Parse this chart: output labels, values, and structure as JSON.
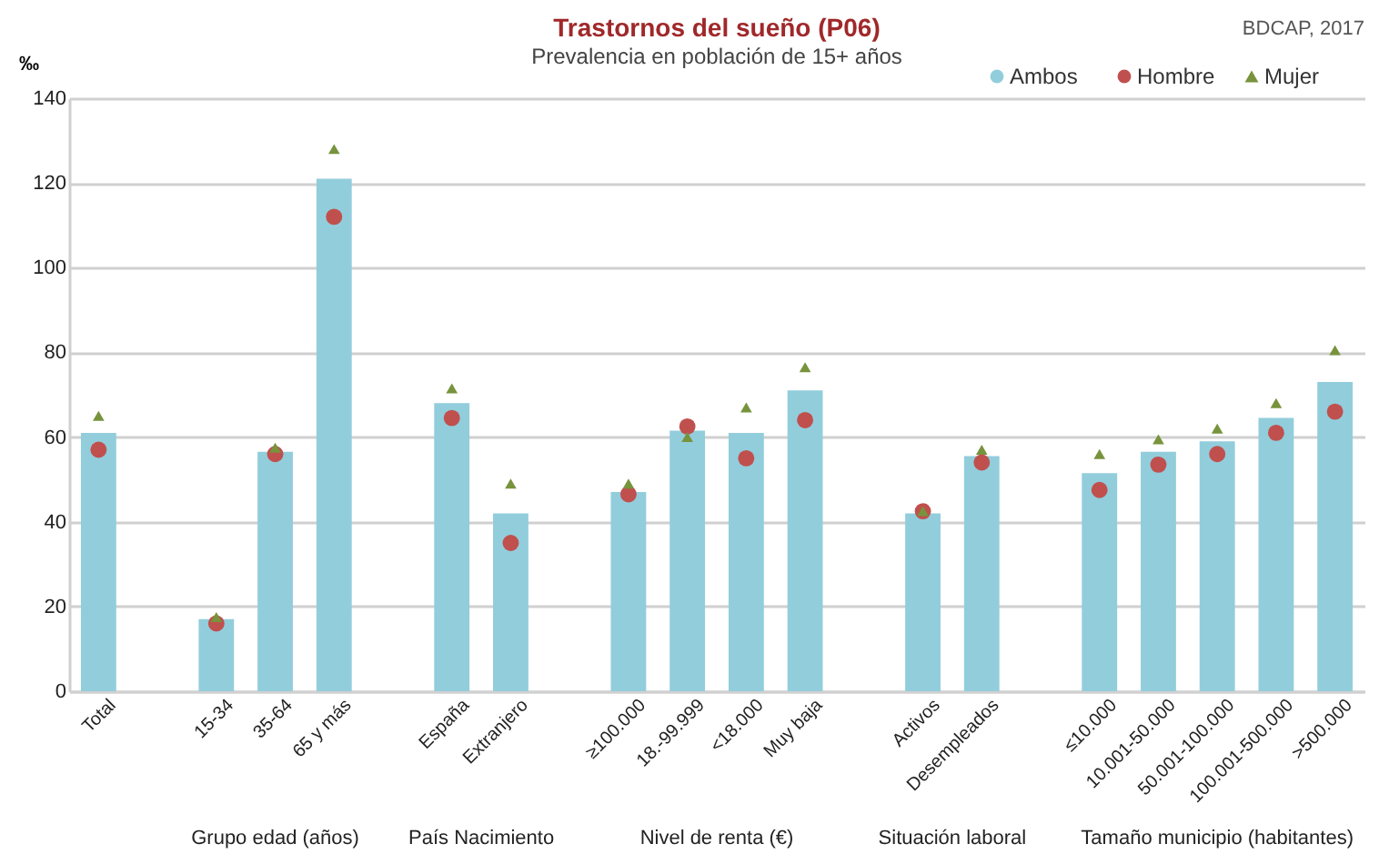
{
  "chart_data": {
    "type": "bar",
    "title": "Trastornos  del sueño (P06)",
    "subtitle": "Prevalencia en población de 15+ años",
    "ylabel": "‰",
    "annotations": [
      "BDCAP, 2017",
      "Grupo edad (años)",
      "País Nacimiento",
      "Nivel de renta (€)",
      "Situación laboral",
      "Tamaño municipio (habitantes)"
    ],
    "categories": [
      "Total",
      null,
      "15-34",
      "35-64",
      "65 y más",
      null,
      "España",
      "Extranjero",
      null,
      "≥100.000",
      "18.-99.999",
      "<18.000",
      "Muy baja",
      null,
      "Activos",
      "Desempleados",
      null,
      "≤10.000",
      "10.001-50.000",
      "50.001-100.000",
      "100.001-500.000",
      ">500.000"
    ],
    "series": [
      {
        "name": "Ambos",
        "color": "#92cddc",
        "values": [
          61,
          null,
          17,
          56.5,
          121,
          null,
          68,
          42,
          null,
          47,
          61.5,
          61,
          71,
          null,
          42,
          55.5,
          null,
          51.5,
          56.5,
          59,
          64.5,
          73
        ]
      },
      {
        "name": "Hombre",
        "type": "scatter",
        "marker": "circle",
        "color": "#c0504d",
        "values": [
          57,
          null,
          16,
          56,
          112,
          null,
          64.5,
          35,
          null,
          46.5,
          62.5,
          55,
          64,
          null,
          42.5,
          54,
          null,
          47.5,
          53.5,
          56,
          61,
          66
        ]
      },
      {
        "name": "Mujer",
        "type": "scatter",
        "marker": "triangle",
        "color": "#77933c",
        "values": [
          65,
          null,
          17.5,
          57.5,
          128,
          null,
          71.5,
          49,
          null,
          49,
          60,
          67,
          76.5,
          null,
          42.5,
          57,
          null,
          56,
          59.5,
          62,
          68,
          80.5
        ]
      }
    ],
    "ylim": [
      0,
      140
    ],
    "yticks": [
      0,
      20,
      40,
      60,
      80,
      100,
      120,
      140
    ],
    "grid": "y",
    "legend": "top right"
  }
}
